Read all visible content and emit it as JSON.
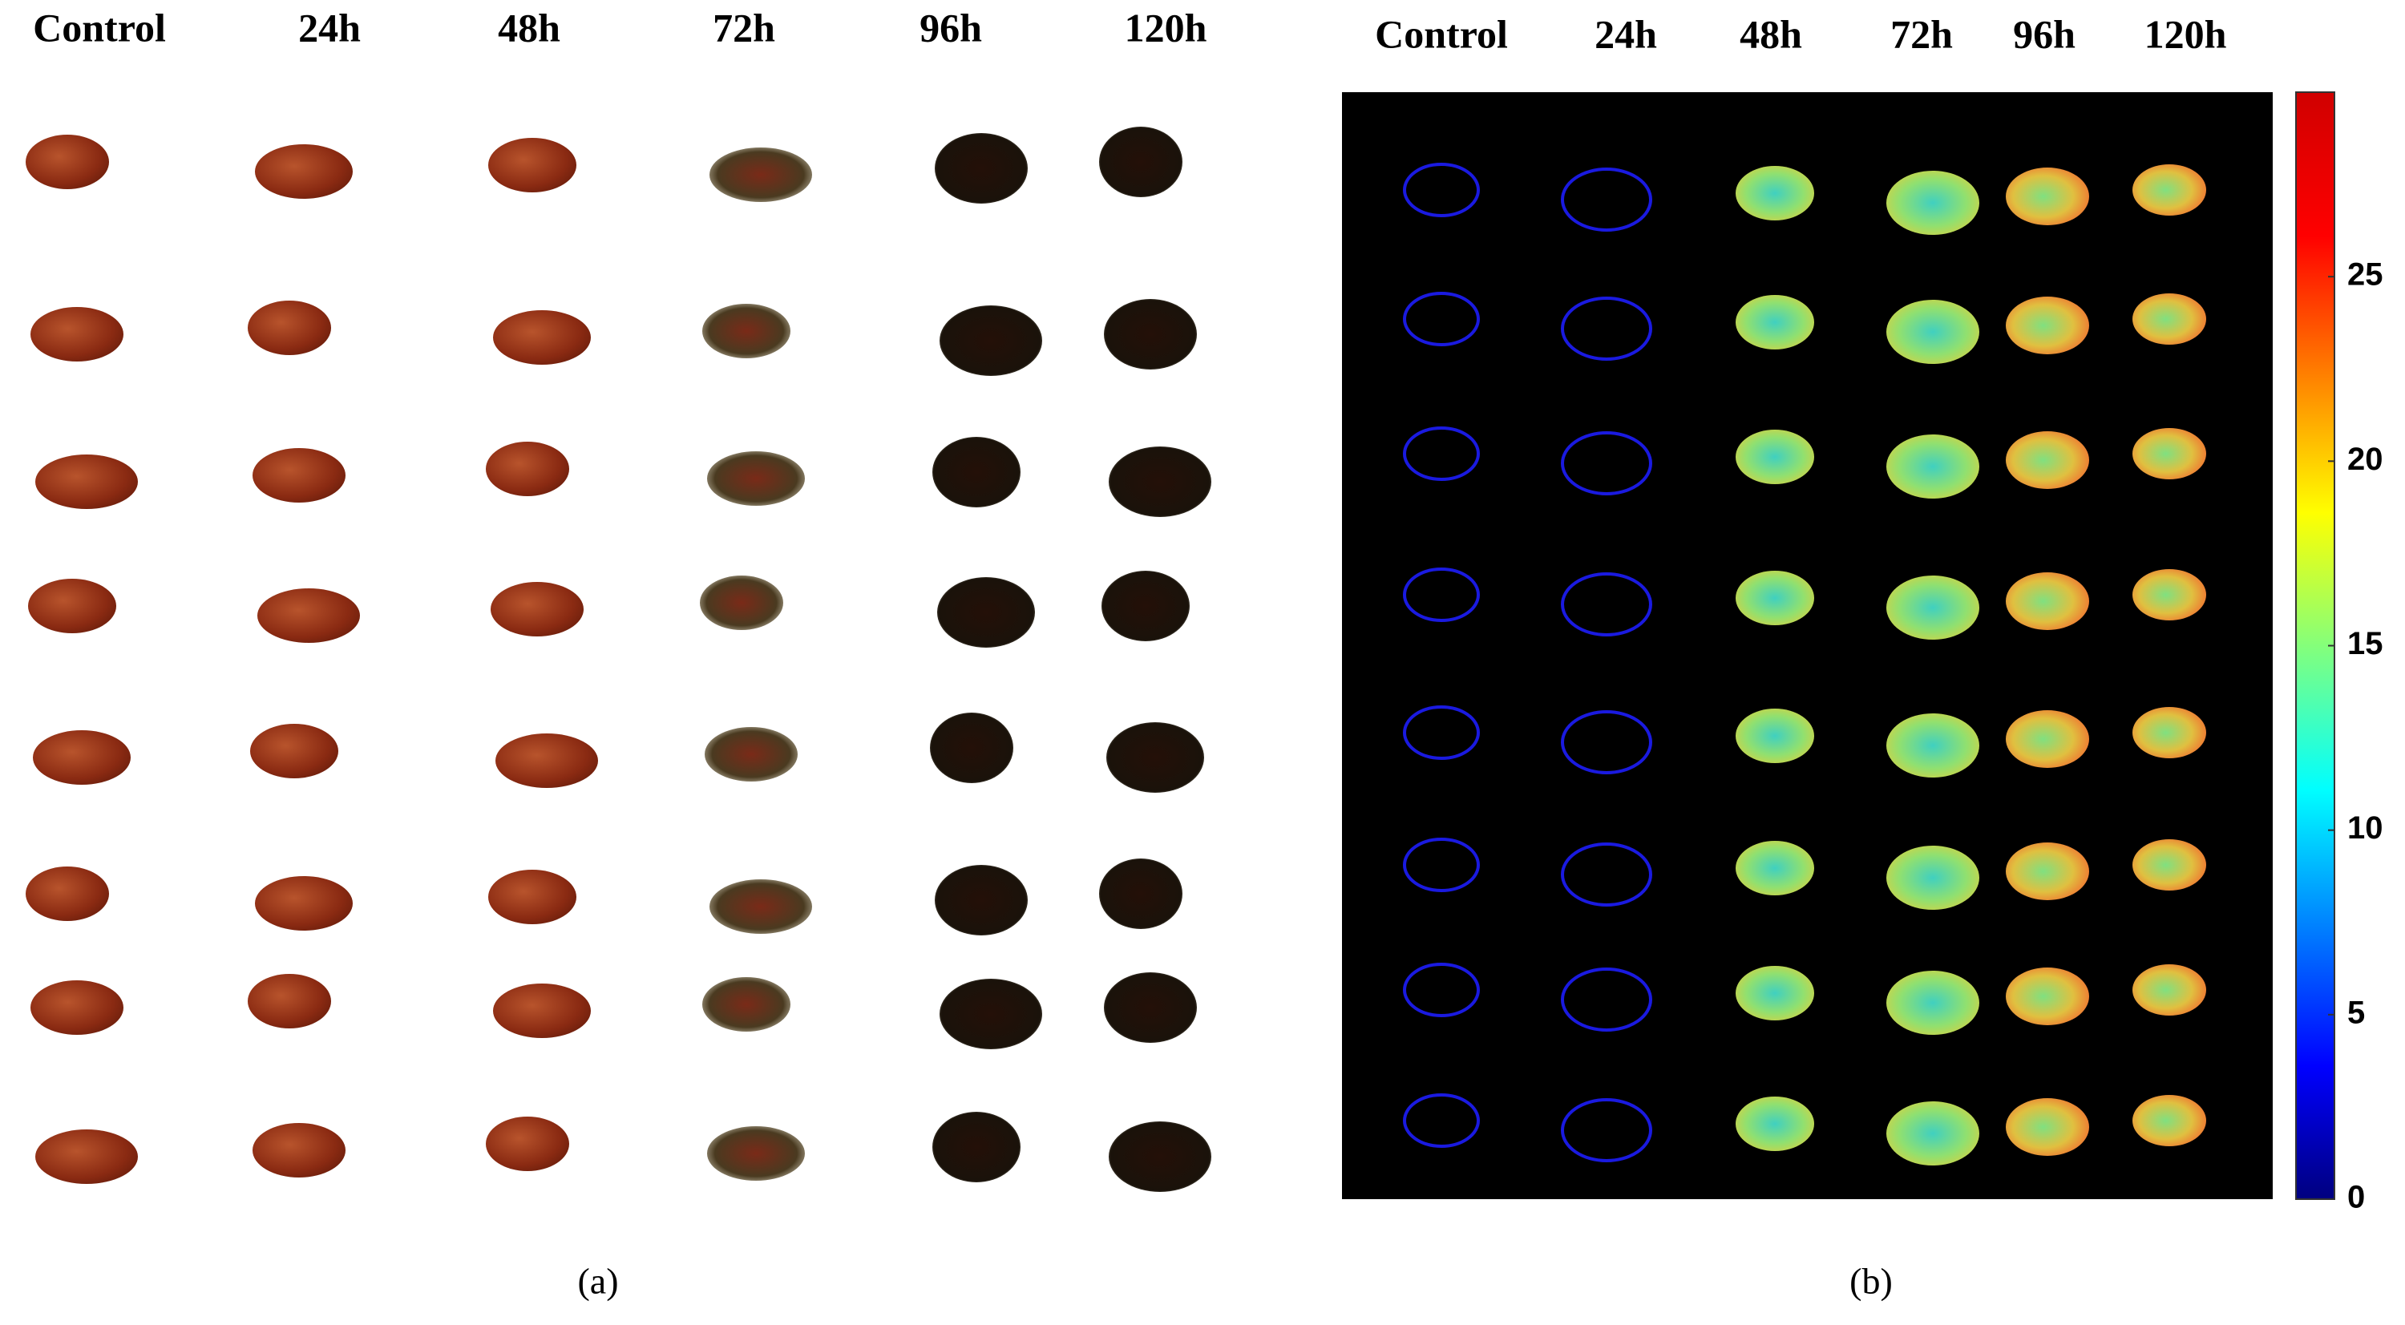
{
  "panel_a": {
    "labels": [
      "Control",
      "24h",
      "48h",
      "72h",
      "96h",
      "120h"
    ],
    "caption": "(a)"
  },
  "panel_b": {
    "labels": [
      "Control",
      "24h",
      "48h",
      "72h",
      "96h",
      "120h"
    ],
    "caption": "(b)",
    "colorbar": {
      "range": [
        0,
        30
      ],
      "ticks": [
        0,
        5,
        10,
        15,
        20,
        25
      ]
    }
  }
}
